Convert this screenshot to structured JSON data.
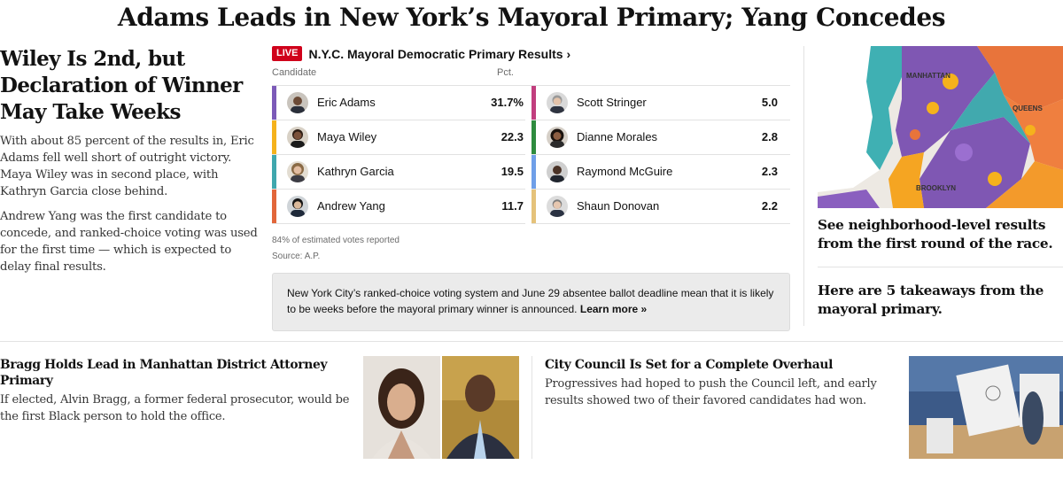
{
  "headline": "Adams Leads in New York’s Mayoral Primary; Yang Concedes",
  "lede": {
    "title": "Wiley Is 2nd, but Declaration of Winner May Take Weeks",
    "para1": "With about 85 percent of the results in, Eric Adams fell well short of outright victory. Maya Wiley was in second place, with Kathryn Garcia close behind.",
    "para2": "Andrew Yang was the first candidate to concede, and ranked-choice voting was used for the first time — which is expected to delay final results."
  },
  "results": {
    "live_label": "LIVE",
    "heading": "N.Y.C. Mayoral Democratic Primary Results ›",
    "col_candidate": "Candidate",
    "col_pct": "Pct.",
    "left": [
      {
        "name": "Eric Adams",
        "pct": "31.7%",
        "color": "#7c5ab8"
      },
      {
        "name": "Maya Wiley",
        "pct": "22.3",
        "color": "#f5b21c"
      },
      {
        "name": "Kathryn Garcia",
        "pct": "19.5",
        "color": "#3fa7ad"
      },
      {
        "name": "Andrew Yang",
        "pct": "11.7",
        "color": "#e2663a"
      }
    ],
    "right": [
      {
        "name": "Scott Stringer",
        "pct": "5.0",
        "color": "#c13e7e"
      },
      {
        "name": "Dianne Morales",
        "pct": "2.8",
        "color": "#2e8b3e"
      },
      {
        "name": "Raymond McGuire",
        "pct": "2.3",
        "color": "#6f9fe8"
      },
      {
        "name": "Shaun Donovan",
        "pct": "2.2",
        "color": "#e5c27a"
      }
    ],
    "reported": "84% of estimated votes reported",
    "source": "Source: A.P.",
    "notice_text": "New York City’s ranked-choice voting system and June 29 absentee ballot deadline mean that it is likely to be weeks before the mayoral primary winner is announced.",
    "notice_link": "Learn more »"
  },
  "map": {
    "label_manhattan": "MANHATTAN",
    "label_queens": "QUEENS",
    "label_brooklyn": "BROOKLYN",
    "link": "See neighborhood-level results from the first round of the race."
  },
  "takeaways": "Here are 5 takeaways from the mayoral primary.",
  "story1": {
    "title": "Bragg Holds Lead in Manhattan District Attorney Primary",
    "summary": "If elected, Alvin Bragg, a former federal prosecutor, would be the first Black person to hold the office."
  },
  "story2": {
    "title": "City Council Is Set for a Complete Overhaul",
    "summary": "Progressives had hoped to push the Council left, and early results showed two of their favored candidates had won."
  }
}
